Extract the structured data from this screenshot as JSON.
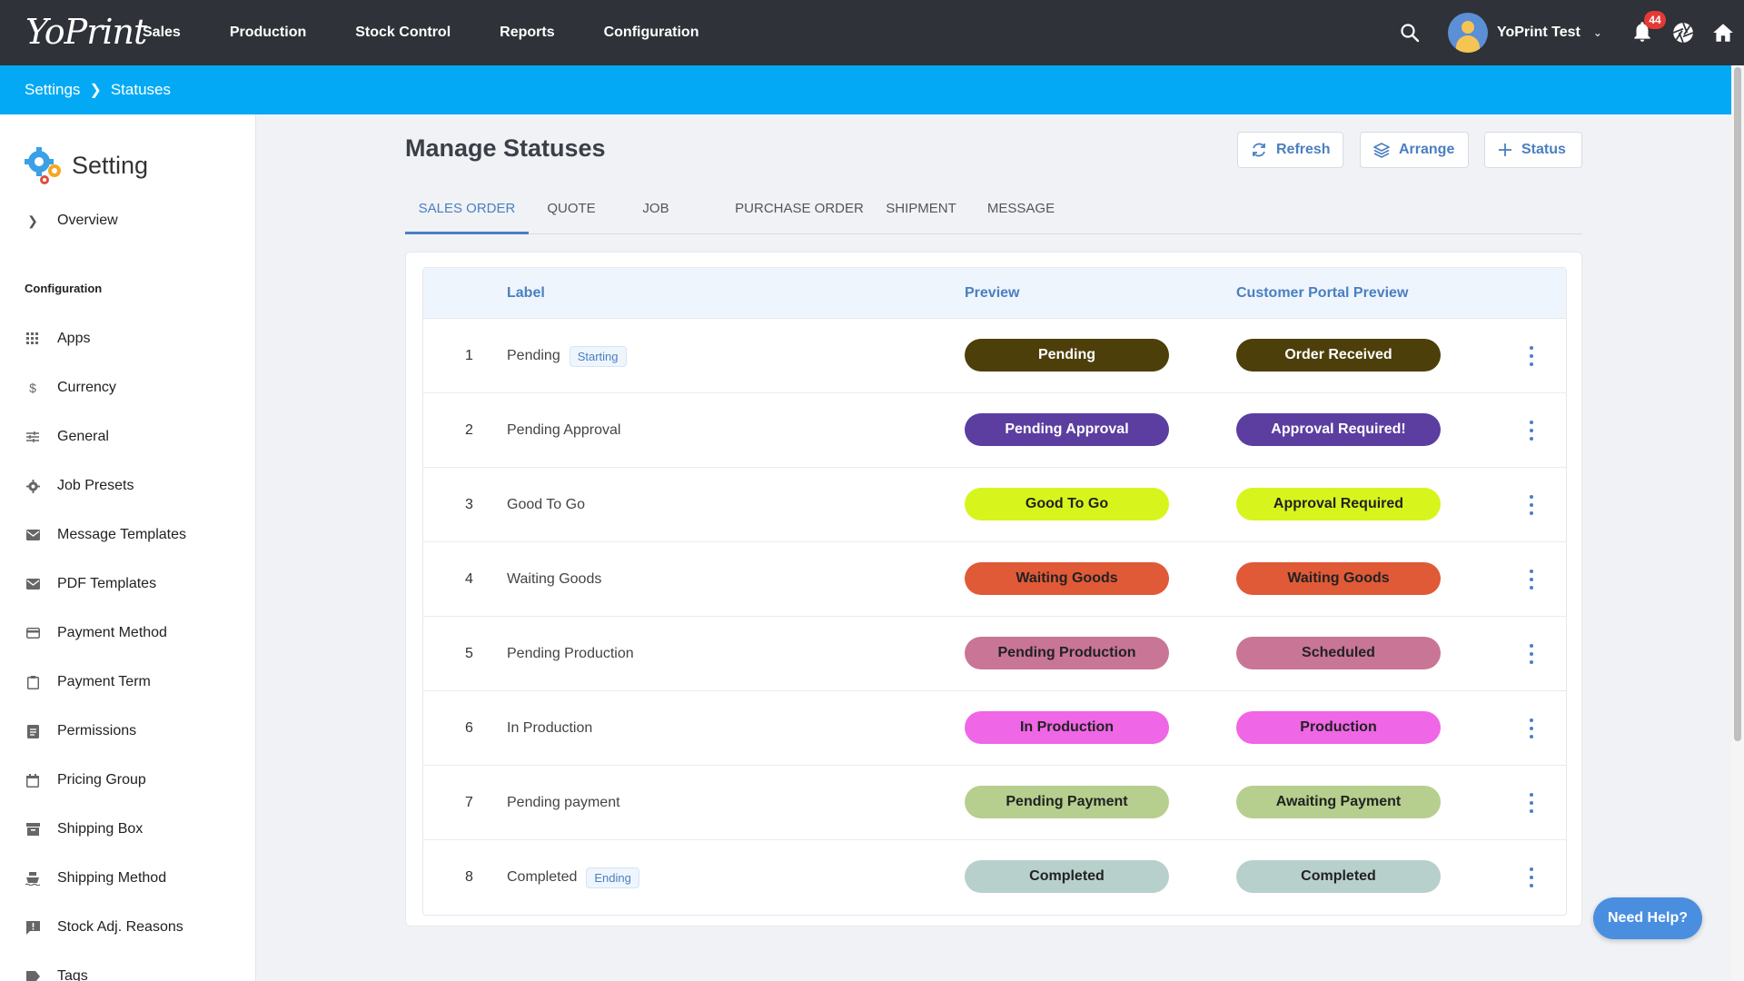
{
  "app": {
    "logo_text": "YoPrint"
  },
  "topnav": {
    "items": [
      "Sales",
      "Production",
      "Stock Control",
      "Reports",
      "Configuration"
    ],
    "user_name": "YoPrint Test",
    "notification_count": "44"
  },
  "breadcrumb": {
    "parent": "Settings",
    "current": "Statuses"
  },
  "sidebar": {
    "title": "Setting",
    "overview": "Overview",
    "section": "Configuration",
    "items": [
      {
        "label": "Apps",
        "icon": "grid-icon"
      },
      {
        "label": "Currency",
        "icon": "dollar-icon"
      },
      {
        "label": "General",
        "icon": "sliders-icon"
      },
      {
        "label": "Job Presets",
        "icon": "gear-icon"
      },
      {
        "label": "Message Templates",
        "icon": "mail-icon"
      },
      {
        "label": "PDF Templates",
        "icon": "mail-icon"
      },
      {
        "label": "Payment Method",
        "icon": "card-icon"
      },
      {
        "label": "Payment Term",
        "icon": "clipboard-icon"
      },
      {
        "label": "Permissions",
        "icon": "document-icon"
      },
      {
        "label": "Pricing Group",
        "icon": "calendar-icon"
      },
      {
        "label": "Shipping Box",
        "icon": "archive-icon"
      },
      {
        "label": "Shipping Method",
        "icon": "ship-icon"
      },
      {
        "label": "Stock Adj. Reasons",
        "icon": "feedback-icon"
      },
      {
        "label": "Tags",
        "icon": "tag-icon"
      }
    ]
  },
  "main": {
    "title": "Manage Statuses",
    "buttons": {
      "refresh": "Refresh",
      "arrange": "Arrange",
      "status": "Status"
    },
    "tabs": [
      "SALES ORDER",
      "QUOTE",
      "JOB",
      "PURCHASE ORDER",
      "SHIPMENT",
      "MESSAGE"
    ],
    "active_tab": "SALES ORDER",
    "table": {
      "headers": {
        "label": "Label",
        "preview": "Preview",
        "portal": "Customer Portal Preview"
      },
      "rows": [
        {
          "num": "1",
          "label": "Pending",
          "tag": "Starting",
          "preview": "Pending",
          "portal": "Order Received",
          "bg": "#4d3f0a",
          "fg": "#ffffff"
        },
        {
          "num": "2",
          "label": "Pending Approval",
          "tag": "",
          "preview": "Pending Approval",
          "portal": "Approval Required!",
          "bg": "#5b3ea0",
          "fg": "#ffffff"
        },
        {
          "num": "3",
          "label": "Good To Go",
          "tag": "",
          "preview": "Good To Go",
          "portal": "Approval Required",
          "bg": "#d7f51c",
          "fg": "#222222"
        },
        {
          "num": "4",
          "label": "Waiting Goods",
          "tag": "",
          "preview": "Waiting Goods",
          "portal": "Waiting Goods",
          "bg": "#e05a38",
          "fg": "#222222"
        },
        {
          "num": "5",
          "label": "Pending Production",
          "tag": "",
          "preview": "Pending Production",
          "portal": "Scheduled",
          "bg": "#c87596",
          "fg": "#222222"
        },
        {
          "num": "6",
          "label": "In Production",
          "tag": "",
          "preview": "In Production",
          "portal": "Production",
          "bg": "#ef66e6",
          "fg": "#222222"
        },
        {
          "num": "7",
          "label": "Pending payment",
          "tag": "",
          "preview": "Pending Payment",
          "portal": "Awaiting Payment",
          "bg": "#b6cf8e",
          "fg": "#222222"
        },
        {
          "num": "8",
          "label": "Completed",
          "tag": "Ending",
          "preview": "Completed",
          "portal": "Completed",
          "bg": "#b8d0cc",
          "fg": "#222222"
        }
      ]
    }
  },
  "help": "Need Help?"
}
